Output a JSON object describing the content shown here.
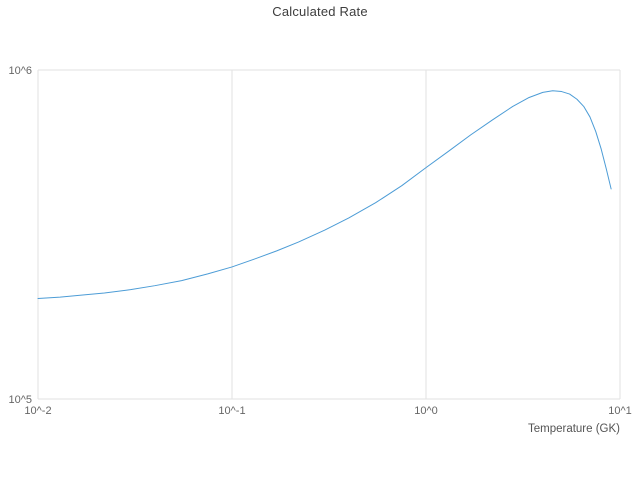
{
  "title": "Calculated Rate",
  "colors": {
    "line": "#4c9cd6",
    "grid": "#e2e2e2",
    "title_text": "#3d3d3d",
    "tick_text": "#666666",
    "axis_title_text": "#545454",
    "background": "#ffffff"
  },
  "chart_data": {
    "type": "line",
    "title": "Calculated Rate",
    "xlabel": "Temperature (GK)",
    "ylabel": "",
    "x_scale": "log",
    "y_scale": "log",
    "xlim": [
      0.01,
      10
    ],
    "ylim": [
      100000,
      1000000
    ],
    "grid": true,
    "legend": false,
    "x_ticks": [
      {
        "value": 0.01,
        "label": "10^-2"
      },
      {
        "value": 0.1,
        "label": "10^-1"
      },
      {
        "value": 1,
        "label": "10^0"
      },
      {
        "value": 10,
        "label": "10^1"
      }
    ],
    "y_ticks": [
      {
        "value": 100000,
        "label": "10^5"
      },
      {
        "value": 1000000,
        "label": "10^6"
      }
    ],
    "series": [
      {
        "name": "Calculated Rate",
        "x": [
          0.01,
          0.013,
          0.017,
          0.022,
          0.03,
          0.04,
          0.055,
          0.075,
          0.1,
          0.13,
          0.17,
          0.22,
          0.3,
          0.4,
          0.55,
          0.75,
          1.0,
          1.3,
          1.7,
          2.2,
          2.8,
          3.4,
          4.0,
          4.5,
          5.0,
          5.5,
          6.0,
          6.5,
          7.0,
          7.5,
          8.0,
          8.5,
          9.0
        ],
        "y": [
          202000.0,
          204000.0,
          207000.0,
          210000.0,
          215000.0,
          221000.0,
          229000.0,
          240000.0,
          252000.0,
          266000.0,
          282000.0,
          300000.0,
          326000.0,
          355000.0,
          395000.0,
          445000.0,
          505000.0,
          565000.0,
          635000.0,
          705000.0,
          775000.0,
          825000.0,
          855000.0,
          865000.0,
          860000.0,
          845000.0,
          815000.0,
          775000.0,
          720000.0,
          650000.0,
          575000.0,
          500000.0,
          435000.0
        ]
      }
    ]
  }
}
